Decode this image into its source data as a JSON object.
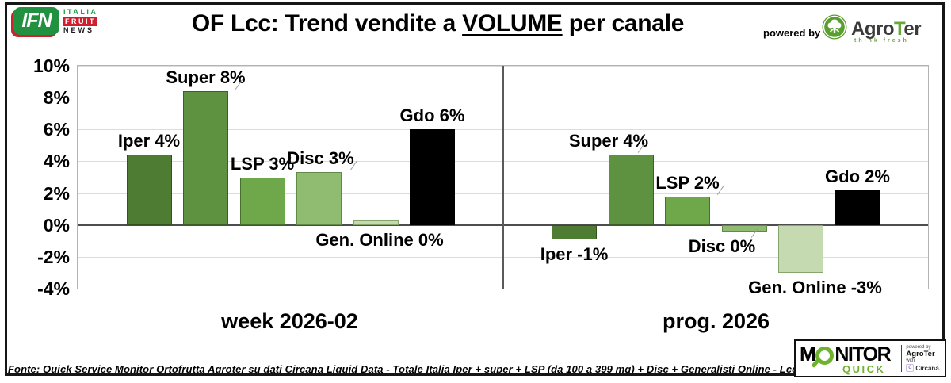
{
  "header": {
    "ifn_logo": {
      "acronym": "IFN",
      "line1": "ITALIA",
      "line2": "FRUIT",
      "line3": "NEWS"
    },
    "title_pre": "OF Lcc: Trend vendite a ",
    "title_underlined": "VOLUME",
    "title_post": " per canale",
    "powered_by": "powered by",
    "agroter": {
      "name_pre": "Agro",
      "name_t": "T",
      "name_post": "er",
      "tagline": "think fresh"
    }
  },
  "chart_data": {
    "type": "bar",
    "title": "OF Lcc: Trend vendite a VOLUME per canale",
    "ylabel": "",
    "ylim": [
      -4,
      10
    ],
    "grid": true,
    "yticks": [
      {
        "value": 10,
        "label": "10%"
      },
      {
        "value": 8,
        "label": "8%"
      },
      {
        "value": 6,
        "label": "6%"
      },
      {
        "value": 4,
        "label": "4%"
      },
      {
        "value": 2,
        "label": "2%"
      },
      {
        "value": 0,
        "label": "0%"
      },
      {
        "value": -2,
        "label": "-2%"
      },
      {
        "value": -4,
        "label": "-4%"
      }
    ],
    "panels": [
      {
        "caption": "week 2026-02",
        "bars": [
          {
            "channel": "Iper",
            "value": 4.4,
            "label": "Iper 4%",
            "color": "#4e7c33",
            "stroke": "#33521f",
            "label_below": false,
            "label_dx": 0,
            "leader": false
          },
          {
            "channel": "Super",
            "value": 8.4,
            "label": "Super 8%",
            "color": "#5e9140",
            "stroke": "#3c5e28",
            "label_below": false,
            "label_dx": 0,
            "leader": true
          },
          {
            "channel": "LSP",
            "value": 3.0,
            "label": "LSP 3%",
            "color": "#6fa84a",
            "stroke": "#47702e",
            "label_below": false,
            "label_dx": 0,
            "leader": false
          },
          {
            "channel": "Disc",
            "value": 3.3,
            "label": "Disc 3%",
            "color": "#8fbc71",
            "stroke": "#5f8a47",
            "label_below": false,
            "label_dx": 2,
            "leader": true
          },
          {
            "channel": "Gen. Online",
            "value": 0.3,
            "label": "Gen. Online 0%",
            "color": "#c6dab2",
            "stroke": "#85a56c",
            "label_below": true,
            "label_dx": 5,
            "leader": false
          },
          {
            "channel": "Gdo",
            "value": 6.0,
            "label": "Gdo 6%",
            "color": "#000000",
            "stroke": "#000000",
            "label_below": false,
            "label_dx": 0,
            "leader": false
          }
        ]
      },
      {
        "caption": "prog. 2026",
        "bars": [
          {
            "channel": "Iper",
            "value": -0.9,
            "label": "Iper -1%",
            "color": "#4e7c33",
            "stroke": "#33521f",
            "label_below": true,
            "label_dx": 0,
            "leader": false
          },
          {
            "channel": "Super",
            "value": 4.4,
            "label": "Super 4%",
            "color": "#5e9140",
            "stroke": "#3c5e28",
            "label_below": false,
            "label_dx": -28,
            "leader": true
          },
          {
            "channel": "LSP",
            "value": 1.8,
            "label": "LSP 2%",
            "color": "#6fa84a",
            "stroke": "#47702e",
            "label_below": false,
            "label_dx": 0,
            "leader": true
          },
          {
            "channel": "Disc",
            "value": -0.4,
            "label": "Disc 0%",
            "color": "#8fbc71",
            "stroke": "#5f8a47",
            "label_below": true,
            "label_dx": -28,
            "leader": true
          },
          {
            "channel": "Gen. Online",
            "value": -3.0,
            "label": "Gen. Online -3%",
            "color": "#c6dab2",
            "stroke": "#85a56c",
            "label_below": true,
            "label_dx": 18,
            "leader": false
          },
          {
            "channel": "Gdo",
            "value": 2.2,
            "label": "Gdo 2%",
            "color": "#000000",
            "stroke": "#000000",
            "label_below": false,
            "label_dx": 0,
            "leader": false
          }
        ]
      }
    ]
  },
  "footer": {
    "fonte": "Fonte: Quick Service Monitor Ortofrutta Agroter su dati Circana Liquid Data - Totale Italia Iper + super + LSP (da 100 a 399 mq) + Disc + Generalisti Online - Lcc",
    "monitor_quick": {
      "monitor_pre": "M",
      "monitor_post": "NITOR",
      "quick": "QUICK",
      "powered_by": "powered by",
      "agroter": "AgroTer",
      "with": "with",
      "circana": "Circana."
    }
  },
  "colors": {
    "accent_green": "#6db42c",
    "ifn_green": "#20913f",
    "ifn_red": "#cf2030",
    "zero_line": "#4d4d4d",
    "gridline": "#dcdcdc"
  }
}
